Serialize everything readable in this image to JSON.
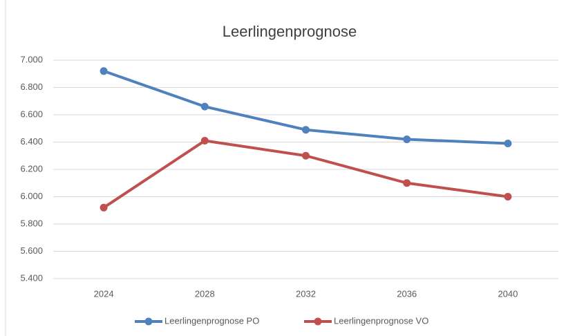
{
  "chart_data": {
    "type": "line",
    "title": "Leerlingenprognose",
    "categories": [
      "2024",
      "2028",
      "2032",
      "2036",
      "2040"
    ],
    "series": [
      {
        "name": "Leerlingenprognose PO",
        "color": "#4f81bd",
        "values": [
          6920,
          6660,
          6490,
          6420,
          6390
        ]
      },
      {
        "name": "Leerlingenprognose VO",
        "color": "#c0504d",
        "values": [
          5920,
          6410,
          6300,
          6100,
          6000
        ]
      }
    ],
    "ylim": [
      5400,
      7000
    ],
    "yticks": [
      {
        "value": 5400,
        "label": "5.400"
      },
      {
        "value": 5600,
        "label": "5.600"
      },
      {
        "value": 5800,
        "label": "5.800"
      },
      {
        "value": 6000,
        "label": "6.000"
      },
      {
        "value": 6200,
        "label": "6.200"
      },
      {
        "value": 6400,
        "label": "6.400"
      },
      {
        "value": 6600,
        "label": "6.600"
      },
      {
        "value": 6800,
        "label": "6.800"
      },
      {
        "value": 7000,
        "label": "7.000"
      }
    ],
    "grid": true,
    "legend": "bottom"
  }
}
